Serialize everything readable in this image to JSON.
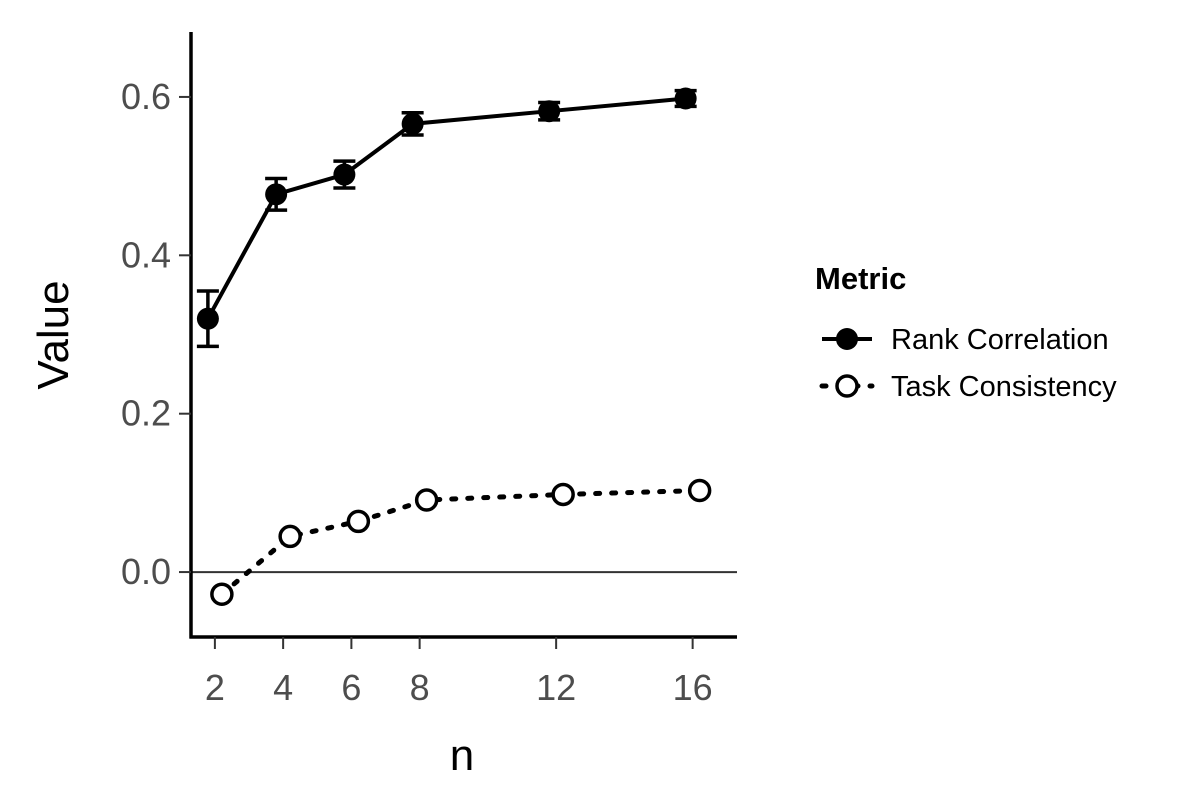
{
  "chart_data": {
    "type": "line",
    "xlabel": "n",
    "ylabel": "Value",
    "x_ticks": [
      2,
      4,
      6,
      8,
      12,
      16
    ],
    "y_ticks": [
      0.0,
      0.2,
      0.4,
      0.6
    ],
    "y_tick_labels": [
      "0.0",
      "0.2",
      "0.4",
      "0.6"
    ],
    "xlim": [
      1.3,
      17.3
    ],
    "ylim": [
      -0.082,
      0.682
    ],
    "reference_line_y": 0,
    "grid": false,
    "legend": {
      "title": "Metric",
      "placement": "right"
    },
    "series": [
      {
        "name": "Rank Correlation",
        "style": "solid",
        "marker": "filled-circle",
        "color": "#000000",
        "x": [
          2,
          4,
          6,
          8,
          12,
          16
        ],
        "y": [
          0.32,
          0.477,
          0.502,
          0.566,
          0.582,
          0.598
        ],
        "error": [
          0.035,
          0.02,
          0.017,
          0.014,
          0.011,
          0.01
        ]
      },
      {
        "name": "Task Consistency",
        "style": "dotted",
        "marker": "open-circle",
        "color": "#000000",
        "x": [
          2,
          4,
          6,
          8,
          12,
          16
        ],
        "y": [
          -0.028,
          0.045,
          0.064,
          0.091,
          0.098,
          0.103
        ]
      }
    ]
  }
}
